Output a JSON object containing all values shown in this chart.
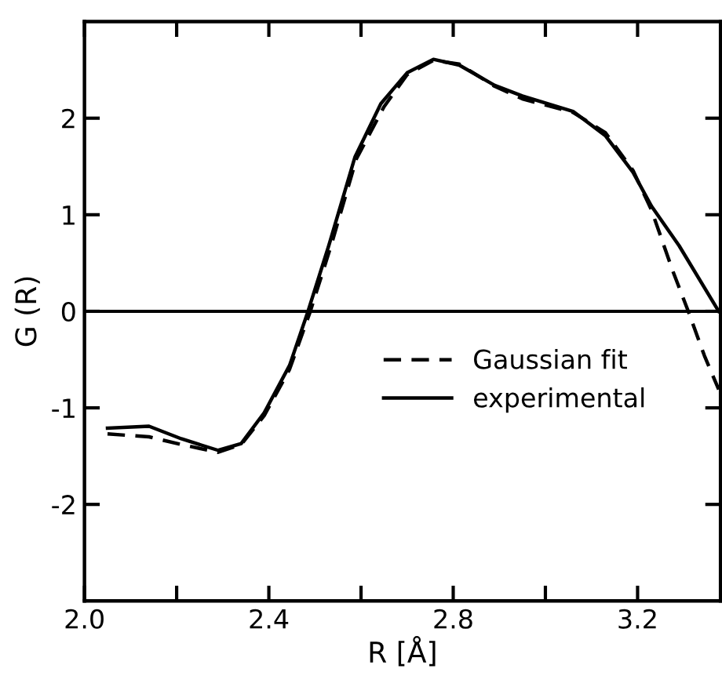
{
  "chart_data": {
    "type": "line",
    "xlabel": "R [Å]",
    "ylabel": "G (R)",
    "xlim": [
      2.0,
      3.38
    ],
    "ylim": [
      -3,
      3
    ],
    "xticks": [
      {
        "value": 2.0,
        "label": "2.0"
      },
      {
        "value": 2.2,
        "label": null
      },
      2.4,
      {
        "value": 2.6,
        "label": null
      },
      2.8,
      {
        "value": 3.0,
        "label": null
      },
      3.2
    ],
    "yticks": [
      -2,
      -1,
      0,
      1,
      2
    ],
    "grid": false,
    "legend": "center right",
    "marker": "none",
    "ref_lines": [
      {
        "axis": "y",
        "value": 0,
        "label": null,
        "color": "#000000",
        "line_style": "solid"
      }
    ],
    "series": [
      {
        "name": "Gaussian fit",
        "color": "#000000",
        "line_style": "dashed",
        "x": [
          2.05,
          2.14,
          2.21,
          2.29,
          2.34,
          2.39,
          2.445,
          2.49,
          2.535,
          2.59,
          2.65,
          2.7,
          2.757,
          2.813,
          2.89,
          2.95,
          3.06,
          3.13,
          3.19,
          3.23,
          3.277,
          3.31,
          3.345,
          3.376
        ],
        "values": [
          -1.27,
          -1.3,
          -1.38,
          -1.46,
          -1.38,
          -1.08,
          -0.6,
          0,
          0.68,
          1.58,
          2.12,
          2.45,
          2.6,
          2.56,
          2.33,
          2.2,
          2.06,
          1.85,
          1.46,
          1.05,
          0.41,
          0,
          -0.46,
          -0.81
        ]
      },
      {
        "name": "experimental",
        "color": "#000000",
        "line_style": "solid",
        "x": [
          2.05,
          2.14,
          2.21,
          2.29,
          2.34,
          2.39,
          2.445,
          2.485,
          2.53,
          2.587,
          2.643,
          2.7,
          2.757,
          2.813,
          2.89,
          2.95,
          3.06,
          3.13,
          3.19,
          3.23,
          3.29,
          3.376
        ],
        "values": [
          -1.21,
          -1.19,
          -1.32,
          -1.44,
          -1.37,
          -1.05,
          -0.56,
          0,
          0.68,
          1.6,
          2.15,
          2.47,
          2.61,
          2.55,
          2.34,
          2.23,
          2.07,
          1.82,
          1.44,
          1.09,
          0.68,
          0
        ]
      }
    ]
  }
}
